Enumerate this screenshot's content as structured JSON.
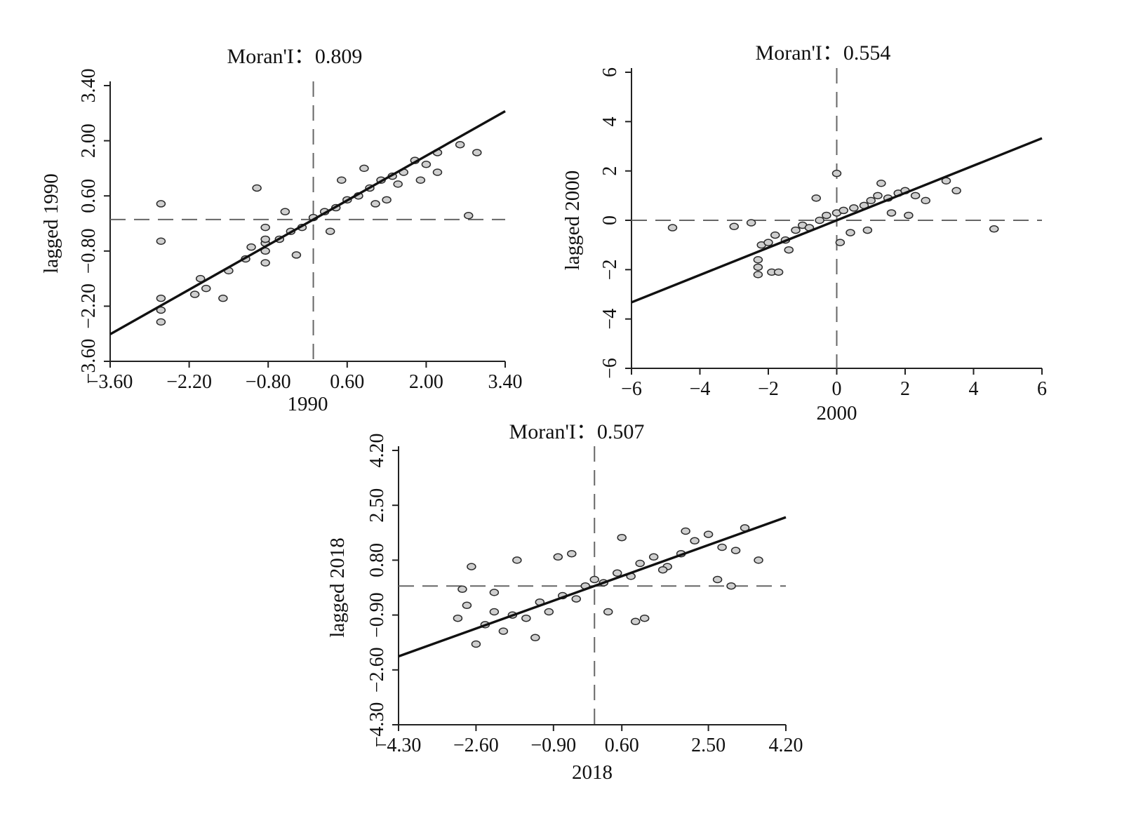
{
  "chart_data": [
    {
      "type": "scatter",
      "title": "Moran'I：0.809",
      "xlabel": "1990",
      "ylabel": "lagged 1990",
      "xlim": [
        -3.6,
        3.4
      ],
      "ylim": [
        -3.6,
        3.4
      ],
      "xticks": [
        -3.6,
        -2.2,
        -0.8,
        0.6,
        2.0,
        3.4
      ],
      "yticks": [
        -3.6,
        -2.2,
        -0.8,
        0.6,
        2.0,
        3.4
      ],
      "xtick_labels": [
        "−3.60",
        "−2.20",
        "−0.80",
        "0.60",
        "2.00",
        "3.40"
      ],
      "ytick_labels": [
        "−3.60",
        "−2.20",
        "−0.80",
        "0.60",
        "2.00",
        "3.40"
      ],
      "reference_lines": {
        "x": 0,
        "y": 0
      },
      "regression": {
        "slope": 0.809,
        "intercept": 0
      },
      "points": {
        "x": [
          -2.1,
          -1.9,
          -1.5,
          -1.2,
          -0.85,
          -0.6,
          -0.4,
          -0.2,
          0.0,
          0.2,
          0.4,
          0.6,
          0.8,
          1.0,
          1.2,
          1.4,
          1.6,
          1.8,
          2.0,
          2.2,
          2.6,
          2.9,
          2.75,
          -2.7,
          -2.7,
          -2.7,
          -2.7,
          -2.7,
          -1.6,
          -0.85,
          -0.85,
          -0.85,
          -0.85,
          -0.3,
          0.5,
          1.1,
          1.5,
          2.2,
          -1.0,
          0.9,
          1.9,
          -0.5,
          0.3,
          1.3,
          -2.0,
          -1.1
        ],
        "y": [
          -1.9,
          -1.75,
          -1.3,
          -1.0,
          -0.6,
          -0.5,
          -0.3,
          -0.2,
          0.05,
          0.2,
          0.3,
          0.5,
          0.6,
          0.8,
          1.0,
          1.1,
          1.2,
          1.5,
          1.4,
          1.7,
          1.9,
          1.7,
          0.1,
          0.4,
          -0.55,
          -2.0,
          -2.3,
          -2.6,
          -2.0,
          -0.2,
          -0.5,
          -0.8,
          -1.1,
          -0.9,
          1.0,
          0.4,
          0.9,
          1.2,
          0.8,
          1.3,
          1.0,
          0.2,
          -0.3,
          0.5,
          -1.5,
          -0.7
        ]
      }
    },
    {
      "type": "scatter",
      "title": "Moran'I：0.554",
      "xlabel": "2000",
      "ylabel": "lagged 2000",
      "xlim": [
        -6,
        6
      ],
      "ylim": [
        -6,
        6
      ],
      "xticks": [
        -6,
        -4,
        -2,
        0,
        2,
        4,
        6
      ],
      "yticks": [
        -6,
        -4,
        -2,
        0,
        2,
        4,
        6
      ],
      "xtick_labels": [
        "−6",
        "−4",
        "−2",
        "0",
        "2",
        "4",
        "6"
      ],
      "ytick_labels": [
        "−6",
        "−4",
        "−2",
        "0",
        "2",
        "4",
        "6"
      ],
      "reference_lines": {
        "x": 0,
        "y": 0
      },
      "regression": {
        "slope": 0.554,
        "intercept": 0
      },
      "points": {
        "x": [
          -4.8,
          -3.0,
          -2.5,
          -2.2,
          -2.0,
          -1.8,
          -1.5,
          -1.2,
          -1.0,
          -0.8,
          -0.5,
          -0.3,
          0.0,
          0.2,
          0.5,
          0.8,
          1.0,
          1.2,
          1.5,
          1.8,
          2.0,
          2.3,
          2.6,
          3.2,
          3.5,
          4.6,
          0.0,
          -2.3,
          -2.3,
          -2.3,
          -1.9,
          -1.7,
          0.4,
          1.3,
          -0.6,
          0.9,
          2.1,
          -1.4,
          0.1,
          1.6
        ],
        "y": [
          -0.3,
          -0.25,
          -0.1,
          -1.0,
          -0.9,
          -0.6,
          -0.8,
          -0.4,
          -0.2,
          -0.3,
          0.0,
          0.2,
          0.3,
          0.4,
          0.5,
          0.6,
          0.8,
          1.0,
          0.9,
          1.1,
          1.2,
          1.0,
          0.8,
          1.6,
          1.2,
          -0.35,
          1.9,
          -1.6,
          -1.9,
          -2.2,
          -2.1,
          -2.1,
          -0.5,
          1.5,
          0.9,
          -0.4,
          0.2,
          -1.2,
          -0.9,
          0.3
        ]
      }
    },
    {
      "type": "scatter",
      "title": "Moran'I：0.507",
      "xlabel": "2018",
      "ylabel": "lagged 2018",
      "xlim": [
        -4.3,
        4.2
      ],
      "ylim": [
        -4.3,
        4.2
      ],
      "xticks": [
        -4.3,
        -2.6,
        -0.9,
        0.6,
        2.5,
        4.2
      ],
      "yticks": [
        -4.3,
        -2.6,
        -0.9,
        0.8,
        2.5,
        4.2
      ],
      "xtick_labels": [
        "−4.30",
        "−2.60",
        "−0.90",
        "0.60",
        "2.50",
        "4.20"
      ],
      "ytick_labels": [
        "−4.30",
        "−2.60",
        "−0.90",
        "0.80",
        "2.50",
        "4.20"
      ],
      "reference_lines": {
        "x": 0,
        "y": 0
      },
      "regression": {
        "slope": 0.507,
        "intercept": 0
      },
      "points": {
        "x": [
          -3.0,
          -2.8,
          -2.6,
          -2.4,
          -2.2,
          -2.0,
          -1.8,
          -1.5,
          -1.2,
          -1.0,
          -0.7,
          -0.4,
          -0.2,
          0.0,
          0.2,
          0.5,
          0.8,
          1.0,
          1.3,
          1.6,
          1.9,
          2.2,
          2.5,
          2.8,
          3.0,
          3.3,
          3.6,
          -2.7,
          -1.7,
          -0.5,
          0.9,
          2.0,
          -2.9,
          -1.3,
          0.3,
          1.5,
          2.7,
          -0.8,
          0.6,
          -2.2,
          1.1,
          3.1
        ],
        "y": [
          -1.0,
          -0.6,
          -1.8,
          -1.2,
          -0.8,
          -1.4,
          -0.9,
          -1.0,
          -0.5,
          -0.8,
          -0.3,
          -0.4,
          0.0,
          0.2,
          0.1,
          0.4,
          0.3,
          0.7,
          0.9,
          0.6,
          1.0,
          1.4,
          1.6,
          1.2,
          0.0,
          1.8,
          0.8,
          0.6,
          0.8,
          1.0,
          -1.1,
          1.7,
          -0.1,
          -1.6,
          -0.8,
          0.5,
          0.2,
          0.9,
          1.5,
          -0.2,
          -1.0,
          1.1
        ]
      }
    }
  ]
}
